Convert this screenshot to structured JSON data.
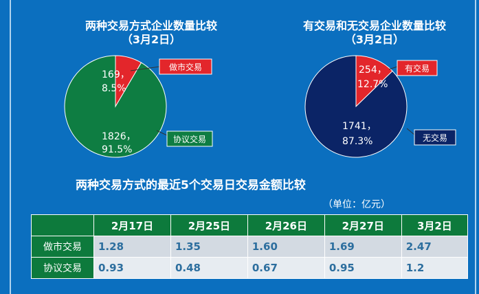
{
  "titles": {
    "pie1_line1": "两种交易方式企业数量比较",
    "pie1_line2": "（3月2日）",
    "pie2_line1": "有交易和无交易企业数量比较",
    "pie2_line2": "（3月2日）",
    "table_title": "两种交易方式的最近5个交易日交易金额比较",
    "unit": "（单位：亿元）"
  },
  "colors": {
    "background": "#0b6fbf",
    "red": "#e3262b",
    "green": "#0e7d42",
    "navy": "#0b2466",
    "header_green": "#0d7a3c"
  },
  "chart_data": [
    {
      "type": "pie",
      "title": "两种交易方式企业数量比较（3月2日）",
      "slices": [
        {
          "name": "做市交易",
          "value": 169,
          "percent": "8.5%",
          "color": "#e3262b",
          "label_line1": "169，",
          "label_line2": "8.5%"
        },
        {
          "name": "协议交易",
          "value": 1826,
          "percent": "91.5%",
          "color": "#0e7d42",
          "label_line1": "1826，",
          "label_line2": "91.5%"
        }
      ]
    },
    {
      "type": "pie",
      "title": "有交易和无交易企业数量比较（3月2日）",
      "slices": [
        {
          "name": "有交易",
          "value": 254,
          "percent": "12.7%",
          "color": "#e3262b",
          "label_line1": "254，",
          "label_line2": "12.7%"
        },
        {
          "name": "无交易",
          "value": 1741,
          "percent": "87.3%",
          "color": "#0b2466",
          "label_line1": "1741，",
          "label_line2": "87.3%"
        }
      ]
    },
    {
      "type": "table",
      "title": "两种交易方式的最近5个交易日交易金额比较",
      "unit": "（单位：亿元）",
      "columns": [
        "2月17日",
        "2月25日",
        "2月26日",
        "2月27日",
        "3月2日"
      ],
      "rows": [
        {
          "name": "做市交易",
          "values": [
            "1.28",
            "1.35",
            "1.60",
            "1.69",
            "2.47"
          ]
        },
        {
          "name": "协议交易",
          "values": [
            "0.93",
            "0.48",
            "0.67",
            "0.95",
            "1.2"
          ]
        }
      ]
    }
  ]
}
